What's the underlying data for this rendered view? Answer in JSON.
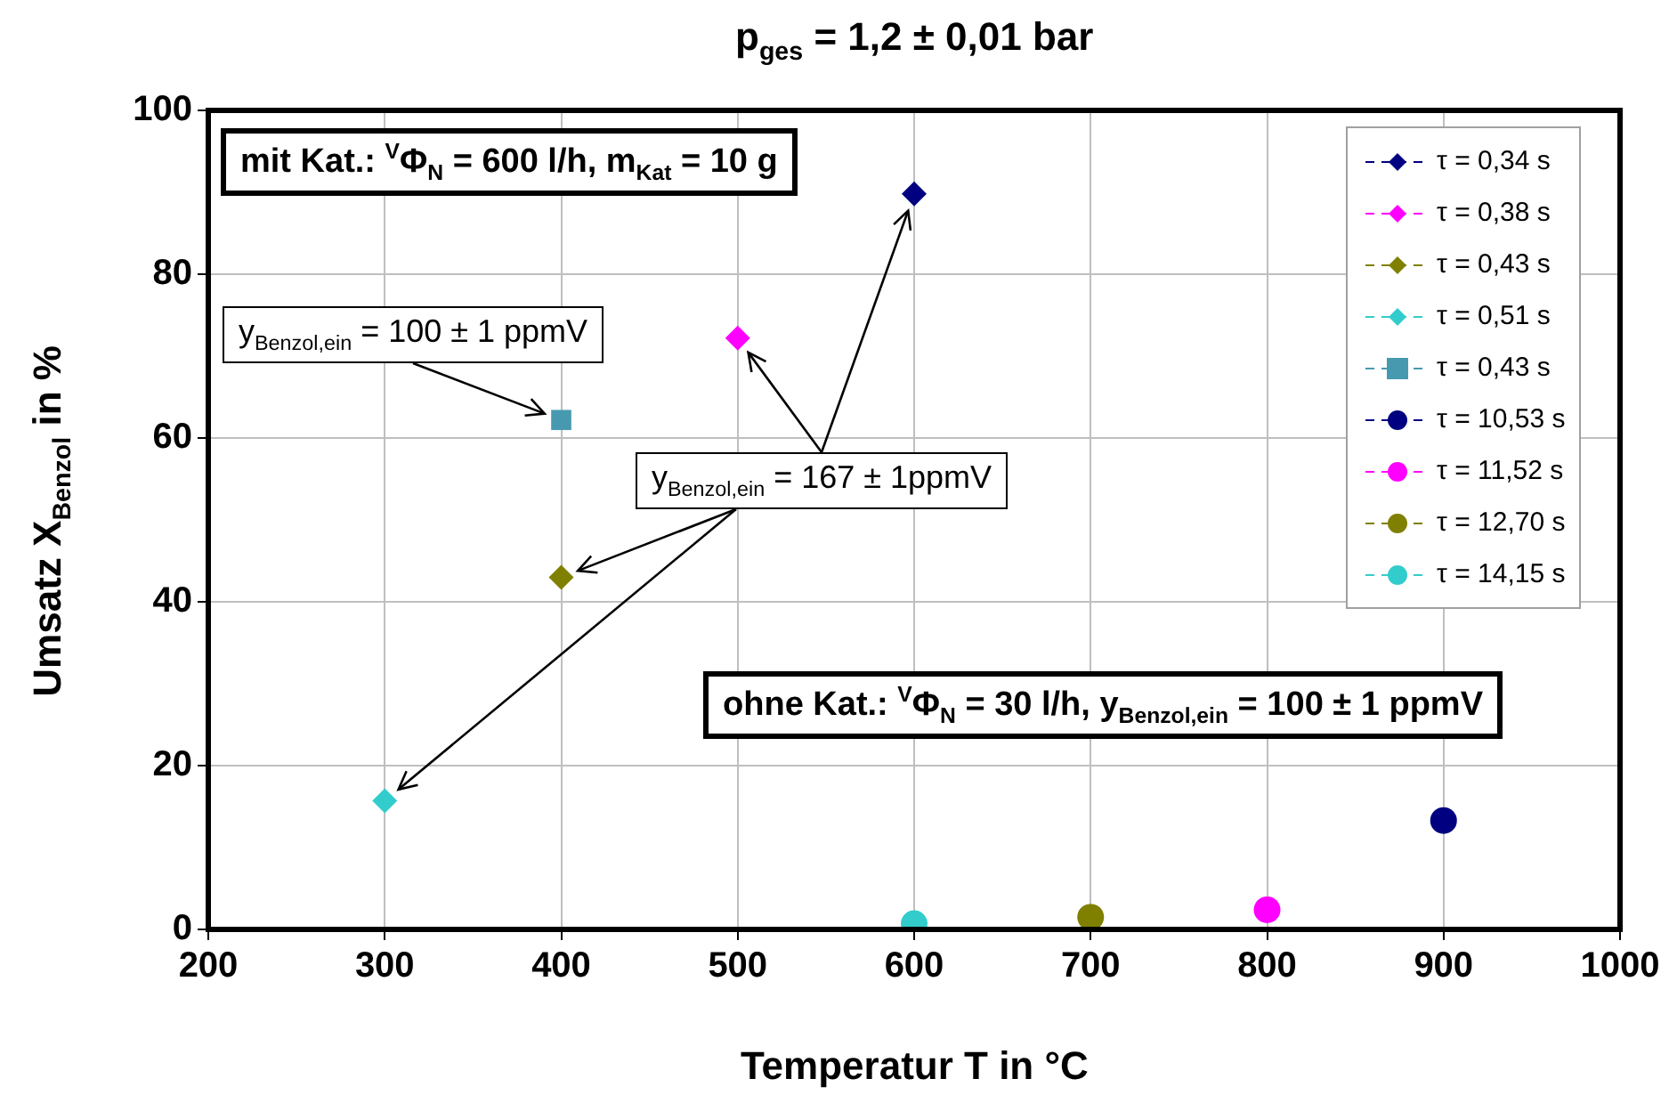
{
  "chart_data": {
    "type": "scatter",
    "title": "p$_{ges}$ = 1,2 ± 0,01 bar",
    "xlabel": "Temperatur T in °C",
    "ylabel": "Umsatz X$_{Benzol}$ in %",
    "xlim": [
      200,
      1000
    ],
    "xticks": [
      200,
      300,
      400,
      500,
      600,
      700,
      800,
      900,
      1000
    ],
    "ylim": [
      0,
      100
    ],
    "yticks": [
      0,
      20,
      40,
      60,
      80,
      100
    ],
    "grid": true,
    "legend": "top right",
    "line_style": "dashed",
    "annotations": [
      "mit Kat.:  $^{V}$Φ$_{N}$ = 600 l/h, m$_{Kat}$ = 10 g",
      {
        "text": "y$_{Benzol,ein}$ = 100 ± 1 ppmV",
        "x": 400,
        "y": 62.2
      },
      "y$_{Benzol,ein}$ = 167 ± 1ppmV",
      "ohne Kat.:  $^{V}$Φ$_{N}$ = 30 l/h, y$_{Benzol,ein}$ = 100 ± 1 ppmV"
    ],
    "series": [
      {
        "name": "τ = 0,34 s",
        "color": "#000080",
        "marker": "diamond",
        "x": [
          600
        ],
        "values": [
          89.8
        ]
      },
      {
        "name": "τ = 0,38 s",
        "color": "#ff00ff",
        "marker": "diamond",
        "x": [
          500
        ],
        "values": [
          72.2
        ]
      },
      {
        "name": "τ = 0,43 s",
        "color": "#808000",
        "marker": "diamond",
        "x": [
          400
        ],
        "values": [
          43
        ]
      },
      {
        "name": "τ = 0,51 s",
        "color": "#33cccc",
        "marker": "diamond",
        "x": [
          300
        ],
        "values": [
          15.7
        ]
      },
      {
        "name": "τ = 0,43 s",
        "color": "#4799b0",
        "marker": "square",
        "x": [
          400
        ],
        "values": [
          62.2
        ]
      },
      {
        "name": "τ = 10,53 s",
        "color": "#000080",
        "marker": "circle",
        "x": [
          900
        ],
        "values": [
          13.3
        ]
      },
      {
        "name": "τ = 11,52 s",
        "color": "#ff00ff",
        "marker": "circle",
        "x": [
          800
        ],
        "values": [
          2.4
        ]
      },
      {
        "name": "τ = 12,70 s",
        "color": "#808000",
        "marker": "circle",
        "x": [
          700
        ],
        "values": [
          1.5
        ]
      },
      {
        "name": "τ = 14,15 s",
        "color": "#33cccc",
        "marker": "circle",
        "x": [
          600
        ],
        "values": [
          0.7
        ]
      }
    ]
  }
}
